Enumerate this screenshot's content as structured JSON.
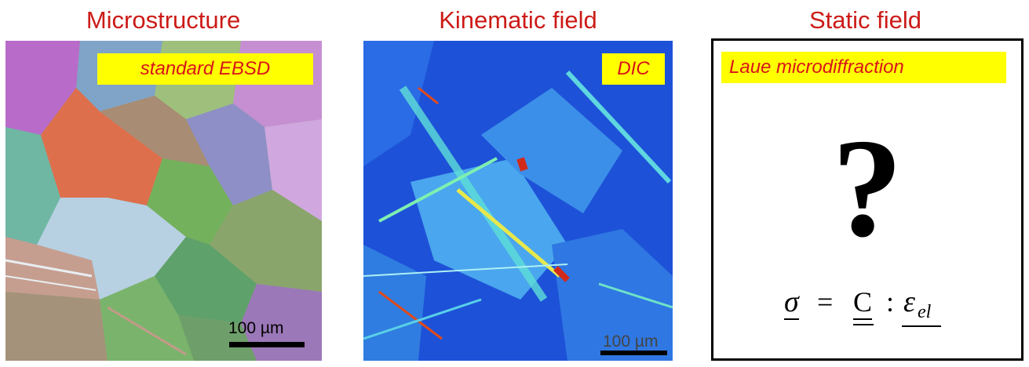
{
  "panels": [
    {
      "title": "Microstructure",
      "label": "standard EBSD",
      "scale": "100 µm"
    },
    {
      "title": "Kinematic field",
      "label": "DIC",
      "scale": "100 µm"
    },
    {
      "title": "Static field",
      "label": "Laue microdiffraction",
      "symbol": "?",
      "formula": {
        "sigma": "σ",
        "eq": "=",
        "C": "C",
        "colon": ":",
        "eps": "ε",
        "sub": "el"
      }
    }
  ],
  "colors": {
    "title": "#cc1b17",
    "label_bg": "#ffff00",
    "label_text": "#d8141a"
  }
}
